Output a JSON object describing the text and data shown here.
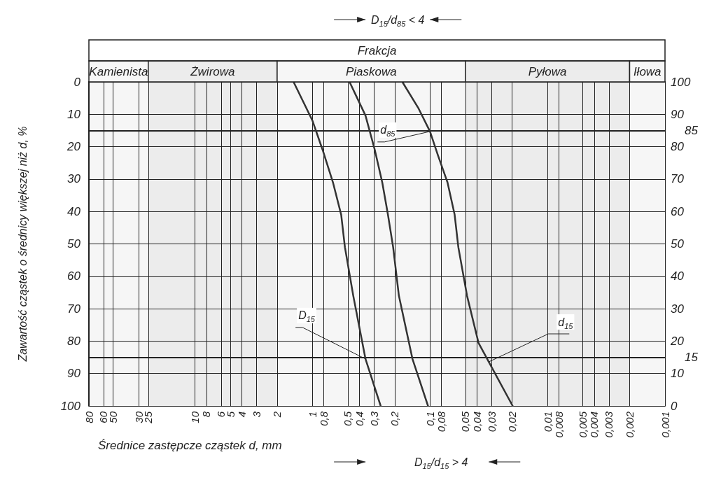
{
  "chart_data": {
    "type": "line",
    "title": "Frakcja",
    "xlabel": "Średnice zastępcze cząstek d, mm",
    "ylabel": "Zawartość cząstek o średnicy większej niż d, %",
    "log": "x",
    "xlim": [
      80,
      0.001
    ],
    "xticks": [
      80,
      60,
      50,
      30,
      25,
      10,
      8,
      6,
      5,
      4,
      3,
      2,
      1,
      {
        "value": 0.8,
        "label": "0,8"
      },
      {
        "value": 0.5,
        "label": "0,5"
      },
      {
        "value": 0.4,
        "label": "0,4"
      },
      {
        "value": 0.3,
        "label": "0,3"
      },
      {
        "value": 0.2,
        "label": "0,2"
      },
      {
        "value": 0.1,
        "label": "0,1"
      },
      {
        "value": 0.08,
        "label": "0,08"
      },
      {
        "value": 0.05,
        "label": "0,05"
      },
      {
        "value": 0.04,
        "label": "0,04"
      },
      {
        "value": 0.03,
        "label": "0,03"
      },
      {
        "value": 0.02,
        "label": "0,02"
      },
      {
        "value": 0.01,
        "label": "0,01"
      },
      {
        "value": 0.008,
        "label": "0,008"
      },
      {
        "value": 0.005,
        "label": "0,005"
      },
      {
        "value": 0.004,
        "label": "0,004"
      },
      {
        "value": 0.003,
        "label": "0,003"
      },
      {
        "value": 0.002,
        "label": "0,002"
      },
      {
        "value": 0.001,
        "label": "0,001"
      }
    ],
    "ylim": [
      100,
      0
    ],
    "yticks": [
      0,
      10,
      20,
      30,
      40,
      50,
      60,
      70,
      80,
      90,
      100
    ],
    "y2lim": [
      0,
      100
    ],
    "y2ticks": [
      0,
      10,
      20,
      30,
      40,
      50,
      60,
      70,
      80,
      90,
      100
    ],
    "grid": true,
    "marker": "none",
    "line_style": "solid",
    "series": [
      {
        "color": "#333333",
        "x": [
          1.45,
          1.0,
          0.82,
          0.67,
          0.57,
          0.53,
          0.45,
          0.354,
          0.263
        ],
        "values": [
          0,
          12,
          21,
          31,
          41,
          51,
          66,
          85.5,
          100
        ]
      },
      {
        "color": "#333333",
        "x": [
          0.484,
          0.354,
          0.295,
          0.255,
          0.228,
          0.206,
          0.184,
          0.141,
          0.104
        ],
        "values": [
          0,
          10.4,
          21,
          31,
          41,
          51,
          66,
          85.5,
          100
        ]
      },
      {
        "color": "#333333",
        "x": [
          0.172,
          0.126,
          0.1,
          0.0855,
          0.071,
          0.0617,
          0.0574,
          0.0484,
          0.0386,
          0.0316,
          0.0198
        ],
        "values": [
          0,
          8,
          15.3,
          22.7,
          31,
          41,
          51,
          66,
          80.6,
          86.4,
          100
        ]
      }
    ],
    "ref_lines": [
      {
        "axis": "y2",
        "value": 85,
        "label": "85"
      },
      {
        "axis": "y2",
        "value": 15,
        "label": "15"
      }
    ],
    "bands": [
      {
        "axis": "x",
        "from": 80,
        "to": 25,
        "label": "Kamienista",
        "color": "#f6f6f6"
      },
      {
        "axis": "x",
        "from": 25,
        "to": 2,
        "label": "Żwirowa",
        "color": "#ececec"
      },
      {
        "axis": "x",
        "from": 2,
        "to": 0.05,
        "label": "Piaskowa",
        "color": "#f6f6f6"
      },
      {
        "axis": "x",
        "from": 0.05,
        "to": 0.002,
        "label": "Pyłowa",
        "color": "#ececec"
      },
      {
        "axis": "x",
        "from": 0.002,
        "to": 0.001,
        "label": "Iłowa",
        "color": "#f6f6f6"
      }
    ],
    "annotations": [
      {
        "text": "D$_{15}$",
        "x": 0.354,
        "y": 85.5
      },
      {
        "text": "d$_{15}$",
        "x": 0.0316,
        "y": 86.4
      },
      {
        "text": "d$_{85}$",
        "x": 0.1,
        "y": 15.3
      },
      "D$_{15}$/d$_{85}$ < 4",
      "D$_{15}$/d$_{15}$ > 4"
    ]
  }
}
